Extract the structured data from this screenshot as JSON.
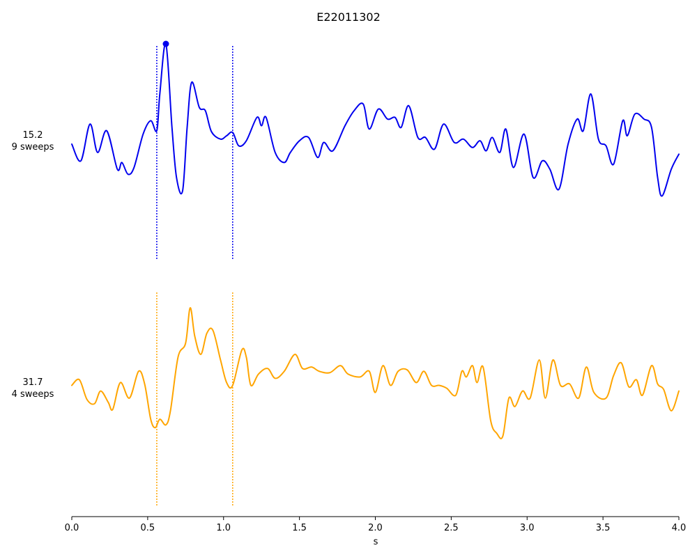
{
  "chart_data": {
    "type": "line",
    "title": "E22011302",
    "xlabel": "s",
    "xlim": [
      0.0,
      4.0
    ],
    "xticks": [
      "0.0",
      "0.5",
      "1.0",
      "1.5",
      "2.0",
      "2.5",
      "3.0",
      "3.5",
      "4.0"
    ],
    "grid": false,
    "legend": "none",
    "series": [
      {
        "label_value": "15.2",
        "label_sweeps": "9 sweeps",
        "color": "#0000ee",
        "ylim": [
          -1.2,
          1.2
        ],
        "markers": [
          0.56,
          1.06
        ],
        "peak": {
          "x": 0.62,
          "y": 1.2
        },
        "points": [
          [
            0.0,
            0.0
          ],
          [
            0.06,
            -0.2
          ],
          [
            0.12,
            0.24
          ],
          [
            0.17,
            -0.1
          ],
          [
            0.23,
            0.16
          ],
          [
            0.3,
            -0.3
          ],
          [
            0.33,
            -0.22
          ],
          [
            0.37,
            -0.36
          ],
          [
            0.41,
            -0.28
          ],
          [
            0.47,
            0.12
          ],
          [
            0.52,
            0.28
          ],
          [
            0.56,
            0.16
          ],
          [
            0.58,
            0.6
          ],
          [
            0.62,
            1.2
          ],
          [
            0.66,
            0.2
          ],
          [
            0.69,
            -0.4
          ],
          [
            0.73,
            -0.56
          ],
          [
            0.76,
            0.2
          ],
          [
            0.79,
            0.74
          ],
          [
            0.84,
            0.44
          ],
          [
            0.88,
            0.4
          ],
          [
            0.92,
            0.15
          ],
          [
            0.98,
            0.06
          ],
          [
            1.02,
            0.1
          ],
          [
            1.06,
            0.14
          ],
          [
            1.1,
            -0.02
          ],
          [
            1.15,
            0.04
          ],
          [
            1.22,
            0.32
          ],
          [
            1.25,
            0.22
          ],
          [
            1.28,
            0.32
          ],
          [
            1.34,
            -0.1
          ],
          [
            1.4,
            -0.22
          ],
          [
            1.44,
            -0.1
          ],
          [
            1.5,
            0.04
          ],
          [
            1.56,
            0.08
          ],
          [
            1.62,
            -0.16
          ],
          [
            1.66,
            0.02
          ],
          [
            1.72,
            -0.08
          ],
          [
            1.8,
            0.22
          ],
          [
            1.86,
            0.4
          ],
          [
            1.92,
            0.48
          ],
          [
            1.96,
            0.18
          ],
          [
            2.02,
            0.42
          ],
          [
            2.08,
            0.3
          ],
          [
            2.13,
            0.32
          ],
          [
            2.17,
            0.2
          ],
          [
            2.22,
            0.46
          ],
          [
            2.28,
            0.08
          ],
          [
            2.33,
            0.08
          ],
          [
            2.39,
            -0.06
          ],
          [
            2.45,
            0.24
          ],
          [
            2.52,
            0.02
          ],
          [
            2.58,
            0.06
          ],
          [
            2.64,
            -0.04
          ],
          [
            2.69,
            0.04
          ],
          [
            2.73,
            -0.08
          ],
          [
            2.77,
            0.08
          ],
          [
            2.82,
            -0.1
          ],
          [
            2.86,
            0.18
          ],
          [
            2.91,
            -0.28
          ],
          [
            2.98,
            0.12
          ],
          [
            3.04,
            -0.4
          ],
          [
            3.1,
            -0.2
          ],
          [
            3.15,
            -0.3
          ],
          [
            3.21,
            -0.54
          ],
          [
            3.27,
            0.0
          ],
          [
            3.33,
            0.3
          ],
          [
            3.37,
            0.16
          ],
          [
            3.42,
            0.6
          ],
          [
            3.47,
            0.06
          ],
          [
            3.52,
            -0.02
          ],
          [
            3.57,
            -0.24
          ],
          [
            3.63,
            0.28
          ],
          [
            3.66,
            0.1
          ],
          [
            3.71,
            0.36
          ],
          [
            3.77,
            0.3
          ],
          [
            3.82,
            0.2
          ],
          [
            3.86,
            -0.4
          ],
          [
            3.89,
            -0.62
          ],
          [
            3.95,
            -0.3
          ],
          [
            4.0,
            -0.12
          ]
        ]
      },
      {
        "label_value": "31.7",
        "label_sweeps": "4 sweeps",
        "color": "#ffa500",
        "ylim": [
          -1.2,
          1.2
        ],
        "markers": [
          0.56,
          1.06
        ],
        "points": [
          [
            0.0,
            0.0
          ],
          [
            0.05,
            0.08
          ],
          [
            0.1,
            -0.2
          ],
          [
            0.15,
            -0.26
          ],
          [
            0.19,
            -0.08
          ],
          [
            0.24,
            -0.24
          ],
          [
            0.27,
            -0.34
          ],
          [
            0.32,
            0.04
          ],
          [
            0.38,
            -0.18
          ],
          [
            0.44,
            0.2
          ],
          [
            0.48,
            0.02
          ],
          [
            0.52,
            -0.48
          ],
          [
            0.55,
            -0.6
          ],
          [
            0.58,
            -0.48
          ],
          [
            0.62,
            -0.56
          ],
          [
            0.65,
            -0.36
          ],
          [
            0.7,
            0.4
          ],
          [
            0.75,
            0.6
          ],
          [
            0.78,
            1.1
          ],
          [
            0.81,
            0.7
          ],
          [
            0.85,
            0.44
          ],
          [
            0.89,
            0.74
          ],
          [
            0.93,
            0.78
          ],
          [
            0.98,
            0.36
          ],
          [
            1.02,
            0.04
          ],
          [
            1.06,
            0.0
          ],
          [
            1.12,
            0.5
          ],
          [
            1.15,
            0.4
          ],
          [
            1.18,
            0.0
          ],
          [
            1.23,
            0.16
          ],
          [
            1.29,
            0.24
          ],
          [
            1.34,
            0.1
          ],
          [
            1.4,
            0.2
          ],
          [
            1.47,
            0.44
          ],
          [
            1.52,
            0.24
          ],
          [
            1.58,
            0.26
          ],
          [
            1.63,
            0.2
          ],
          [
            1.7,
            0.18
          ],
          [
            1.77,
            0.28
          ],
          [
            1.82,
            0.16
          ],
          [
            1.9,
            0.12
          ],
          [
            1.96,
            0.2
          ],
          [
            2.0,
            -0.1
          ],
          [
            2.05,
            0.28
          ],
          [
            2.1,
            0.0
          ],
          [
            2.15,
            0.2
          ],
          [
            2.21,
            0.22
          ],
          [
            2.27,
            0.04
          ],
          [
            2.32,
            0.2
          ],
          [
            2.37,
            0.0
          ],
          [
            2.42,
            0.0
          ],
          [
            2.47,
            -0.04
          ],
          [
            2.53,
            -0.14
          ],
          [
            2.57,
            0.2
          ],
          [
            2.6,
            0.12
          ],
          [
            2.64,
            0.28
          ],
          [
            2.67,
            0.04
          ],
          [
            2.71,
            0.26
          ],
          [
            2.76,
            -0.5
          ],
          [
            2.8,
            -0.68
          ],
          [
            2.84,
            -0.72
          ],
          [
            2.88,
            -0.18
          ],
          [
            2.92,
            -0.3
          ],
          [
            2.97,
            -0.08
          ],
          [
            3.02,
            -0.18
          ],
          [
            3.08,
            0.36
          ],
          [
            3.12,
            -0.18
          ],
          [
            3.17,
            0.36
          ],
          [
            3.22,
            0.0
          ],
          [
            3.28,
            0.02
          ],
          [
            3.34,
            -0.18
          ],
          [
            3.39,
            0.26
          ],
          [
            3.44,
            -0.1
          ],
          [
            3.52,
            -0.18
          ],
          [
            3.57,
            0.14
          ],
          [
            3.62,
            0.32
          ],
          [
            3.67,
            -0.02
          ],
          [
            3.72,
            0.08
          ],
          [
            3.76,
            -0.14
          ],
          [
            3.82,
            0.28
          ],
          [
            3.86,
            0.02
          ],
          [
            3.9,
            -0.06
          ],
          [
            3.95,
            -0.36
          ],
          [
            4.0,
            -0.08
          ]
        ]
      }
    ]
  }
}
